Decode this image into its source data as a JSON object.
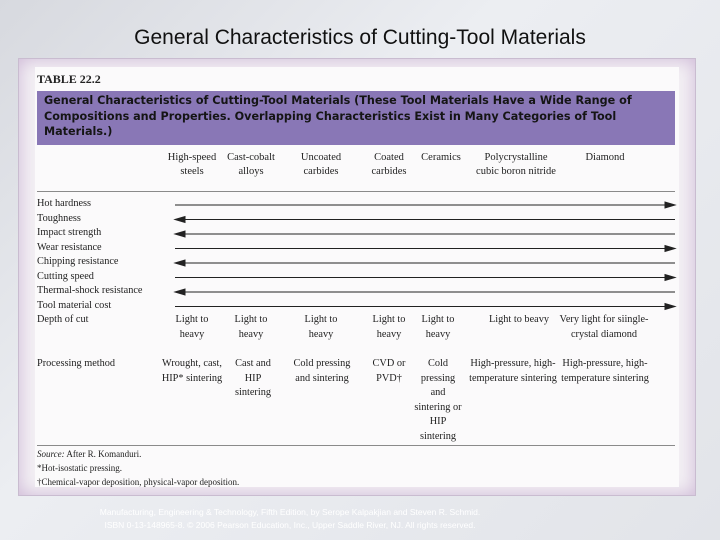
{
  "slide": {
    "title": "General Characteristics of Cutting-Tool Materials"
  },
  "table": {
    "label": "TABLE 22.2",
    "banner": "General Characteristics of Cutting-Tool Materials (These Tool Materials Have a Wide Range of Compositions and Properties. Overlapping Characteristics Exist in Many Categories of Tool Materials.)",
    "columns": [
      "High-speed steels",
      "Cast-cobalt alloys",
      "Uncoated carbides",
      "Coated carbides",
      "Ceramics",
      "Polycrystalline cubic boron nitride",
      "Diamond"
    ],
    "arrow_rows": [
      {
        "label": "Hot hardness",
        "direction": "right"
      },
      {
        "label": "Toughness",
        "direction": "left"
      },
      {
        "label": "Impact strength",
        "direction": "left"
      },
      {
        "label": "Wear resistance",
        "direction": "right"
      },
      {
        "label": "Chipping resistance",
        "direction": "left"
      },
      {
        "label": "Cutting speed",
        "direction": "right"
      },
      {
        "label": "Thermal-shock resistance",
        "direction": "left"
      },
      {
        "label": "Tool material cost",
        "direction": "right"
      }
    ],
    "depth_of_cut": {
      "label": "Depth of cut",
      "values": [
        "Light to heavy",
        "Light to heavy",
        "Light to heavy",
        "Light to heavy",
        "Light to heavy",
        "Light to beavy",
        "Very light for siingle-crystal diamond"
      ]
    },
    "processing_method": {
      "label": "Processing method",
      "values": [
        "Wrought, cast, HIP* sintering",
        "Cast and HIP sintering",
        "Cold pressing and sintering",
        "CVD or PVD†",
        "Cold pressing and sintering or HIP sintering",
        "High-pressure, high-temperature sintering",
        "High-pressure, high-temperature sintering"
      ]
    },
    "notes": {
      "source_label": "Source:",
      "source_text": "After R. Komanduri.",
      "hip": "*Hot-isostatic pressing.",
      "cvd": "†Chemical-vapor deposition, physical-vapor deposition."
    }
  },
  "footer": {
    "line1": "Manufacturing, Engineering & Technology, Fifth Edition, by Serope Kalpakjian and Steven R. Schmid.",
    "line2": "ISBN 0-13-148965-8. © 2006 Pearson Education, Inc., Upper Saddle River, NJ. All rights reserved."
  }
}
